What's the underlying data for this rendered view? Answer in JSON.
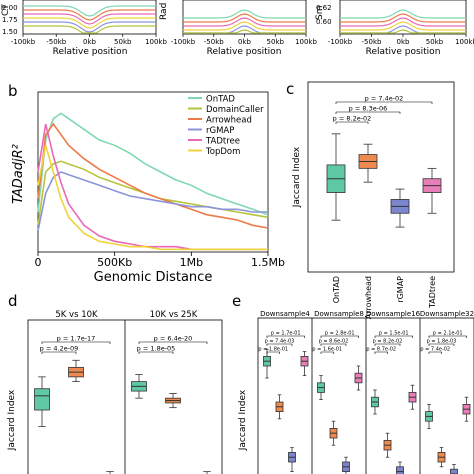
{
  "panels": {
    "a": {
      "ylabels": [
        "CT",
        "Rad",
        "Sm"
      ],
      "yticks_left": [
        "2.00",
        "1.75",
        "1.50"
      ],
      "yticks_right": [
        "0.62",
        "0.60"
      ],
      "xticks": [
        "-100kb",
        "-50kb",
        "0kb",
        "50kb",
        "100kb"
      ],
      "xlabel": "Relative position"
    },
    "b": {
      "letter": "b"
    },
    "c": {
      "letter": "c"
    },
    "d": {
      "letter": "d"
    },
    "e": {
      "letter": "e"
    }
  },
  "chart_data": [
    {
      "id": "b",
      "type": "line",
      "xlabel": "Genomic Distance",
      "ylabel": "TADadjR²",
      "xticks": [
        "0",
        "500Kb",
        "1Mb",
        "1.5Mb"
      ],
      "xlim": [
        0,
        1.5
      ],
      "ylim": [
        0,
        0.6
      ],
      "legend_loc": "top-right",
      "series": [
        {
          "name": "OnTAD",
          "color": "#7fd8b0",
          "x": [
            0,
            0.05,
            0.1,
            0.15,
            0.2,
            0.3,
            0.4,
            0.5,
            0.6,
            0.7,
            0.8,
            0.9,
            1.0,
            1.1,
            1.2,
            1.3,
            1.4,
            1.5
          ],
          "y": [
            0.15,
            0.42,
            0.5,
            0.52,
            0.5,
            0.46,
            0.42,
            0.4,
            0.37,
            0.33,
            0.3,
            0.27,
            0.25,
            0.22,
            0.2,
            0.18,
            0.16,
            0.14
          ]
        },
        {
          "name": "DomainCaller",
          "color": "#b5c43b",
          "x": [
            0,
            0.05,
            0.1,
            0.15,
            0.2,
            0.3,
            0.4,
            0.5,
            0.6,
            0.7,
            0.8,
            0.9,
            1.0,
            1.1,
            1.2,
            1.3,
            1.4,
            1.5
          ],
          "y": [
            0.1,
            0.3,
            0.33,
            0.34,
            0.33,
            0.31,
            0.28,
            0.26,
            0.24,
            0.22,
            0.2,
            0.19,
            0.18,
            0.17,
            0.16,
            0.15,
            0.14,
            0.13
          ]
        },
        {
          "name": "Arrowhead",
          "color": "#ee7a47",
          "x": [
            0,
            0.05,
            0.1,
            0.15,
            0.2,
            0.3,
            0.4,
            0.5,
            0.6,
            0.7,
            0.8,
            0.9,
            1.0,
            1.1,
            1.2,
            1.3,
            1.4,
            1.5
          ],
          "y": [
            0.2,
            0.44,
            0.48,
            0.44,
            0.4,
            0.35,
            0.31,
            0.28,
            0.25,
            0.22,
            0.2,
            0.18,
            0.16,
            0.14,
            0.13,
            0.12,
            0.1,
            0.09
          ]
        },
        {
          "name": "rGMAP",
          "color": "#8b94d8",
          "x": [
            0,
            0.05,
            0.1,
            0.15,
            0.2,
            0.3,
            0.4,
            0.5,
            0.6,
            0.7,
            0.8,
            0.9,
            1.0,
            1.1,
            1.2,
            1.3,
            1.4,
            1.5
          ],
          "y": [
            0.08,
            0.22,
            0.28,
            0.3,
            0.29,
            0.27,
            0.25,
            0.23,
            0.21,
            0.2,
            0.19,
            0.18,
            0.17,
            0.17,
            0.16,
            0.16,
            0.15,
            0.15
          ]
        },
        {
          "name": "TADtree",
          "color": "#e86ab6",
          "x": [
            0,
            0.05,
            0.1,
            0.15,
            0.2,
            0.3,
            0.4,
            0.5,
            0.6,
            0.7,
            0.8,
            0.9,
            1.0,
            1.1,
            1.2,
            1.3,
            1.4,
            1.5
          ],
          "y": [
            0.3,
            0.48,
            0.36,
            0.26,
            0.18,
            0.1,
            0.06,
            0.04,
            0.03,
            0.02,
            0.02,
            0.02,
            0.01,
            0.01,
            0.01,
            0.01,
            0.01,
            0.01
          ]
        },
        {
          "name": "TopDom",
          "color": "#f1d33b",
          "x": [
            0,
            0.05,
            0.1,
            0.15,
            0.2,
            0.3,
            0.4,
            0.5,
            0.6,
            0.7,
            0.8,
            0.9,
            1.0,
            1.1,
            1.2,
            1.3,
            1.4,
            1.5
          ],
          "y": [
            0.25,
            0.4,
            0.3,
            0.2,
            0.13,
            0.07,
            0.04,
            0.03,
            0.02,
            0.02,
            0.01,
            0.01,
            0.01,
            0.01,
            0.01,
            0.01,
            0.01,
            0.01
          ]
        }
      ]
    },
    {
      "id": "c",
      "type": "box",
      "ylabel": "Jaccard Index",
      "ylim": [
        0.05,
        0.6
      ],
      "categories": [
        "OnTAD",
        "Arrowhead",
        "rGMAP",
        "TADtree"
      ],
      "colors": [
        "#5fc9a6",
        "#ee8a4f",
        "#7c86cf",
        "#e87fb8"
      ],
      "boxes": [
        {
          "whislo": 0.2,
          "q1": 0.28,
          "med": 0.32,
          "q3": 0.36,
          "whishi": 0.45
        },
        {
          "whislo": 0.31,
          "q1": 0.35,
          "med": 0.37,
          "q3": 0.39,
          "whishi": 0.42
        },
        {
          "whislo": 0.18,
          "q1": 0.22,
          "med": 0.24,
          "q3": 0.26,
          "whishi": 0.29
        },
        {
          "whislo": 0.22,
          "q1": 0.28,
          "med": 0.3,
          "q3": 0.32,
          "whishi": 0.35
        }
      ],
      "comparisons": [
        {
          "from": 0,
          "to": 1,
          "label": "p = 8.2e-02"
        },
        {
          "from": 0,
          "to": 2,
          "label": "p = 8.3e-06"
        },
        {
          "from": 0,
          "to": 3,
          "label": "p = 7.4e-02"
        }
      ]
    },
    {
      "id": "d",
      "type": "box",
      "ylabel": "Jaccard Index",
      "ylim": [
        0.05,
        0.7
      ],
      "groups": [
        {
          "title": "5K vs 10K",
          "colors": [
            "#5fc9a6",
            "#ee8a4f",
            "#7c86cf"
          ],
          "boxes": [
            {
              "whislo": 0.25,
              "q1": 0.32,
              "med": 0.38,
              "q3": 0.41,
              "whishi": 0.46
            },
            {
              "whislo": 0.44,
              "q1": 0.46,
              "med": 0.48,
              "q3": 0.5,
              "whishi": 0.53
            },
            {
              "whislo": 0.0,
              "q1": 0.02,
              "med": 0.03,
              "q3": 0.04,
              "whishi": 0.06
            }
          ],
          "comparisons": [
            {
              "from": 0,
              "to": 1,
              "label": "p = 4.2e-09"
            },
            {
              "from": 0,
              "to": 2,
              "label": "p = 1.7e-17"
            }
          ]
        },
        {
          "title": "10K vs 25K",
          "colors": [
            "#5fc9a6",
            "#ee8a4f",
            "#7c86cf"
          ],
          "boxes": [
            {
              "whislo": 0.37,
              "q1": 0.4,
              "med": 0.42,
              "q3": 0.44,
              "whishi": 0.47
            },
            {
              "whislo": 0.33,
              "q1": 0.35,
              "med": 0.36,
              "q3": 0.37,
              "whishi": 0.39
            },
            {
              "whislo": 0.0,
              "q1": 0.02,
              "med": 0.03,
              "q3": 0.04,
              "whishi": 0.06
            }
          ],
          "comparisons": [
            {
              "from": 0,
              "to": 1,
              "label": "p = 1.8e-05"
            },
            {
              "from": 0,
              "to": 2,
              "label": "p = 6.4e-20"
            }
          ]
        }
      ]
    },
    {
      "id": "e",
      "type": "box",
      "ylabel": "Jaccard Index",
      "ylim": [
        0.05,
        0.7
      ],
      "groups": [
        {
          "title": "Downsample4",
          "colors": [
            "#5fc9a6",
            "#ee8a4f",
            "#7c86cf",
            "#e87fb8"
          ],
          "boxes": [
            {
              "whislo": 0.45,
              "q1": 0.5,
              "med": 0.52,
              "q3": 0.54,
              "whishi": 0.57
            },
            {
              "whislo": 0.28,
              "q1": 0.31,
              "med": 0.33,
              "q3": 0.35,
              "whishi": 0.38
            },
            {
              "whislo": 0.06,
              "q1": 0.1,
              "med": 0.12,
              "q3": 0.14,
              "whishi": 0.16
            },
            {
              "whislo": 0.46,
              "q1": 0.5,
              "med": 0.52,
              "q3": 0.54,
              "whishi": 0.56
            }
          ],
          "comparisons": [
            {
              "from": 0,
              "to": 1,
              "label": "p = 1.8e-01"
            },
            {
              "from": 0,
              "to": 2,
              "label": "p = 7.4e-03"
            },
            {
              "from": 0,
              "to": 3,
              "label": "p = 1.7e-01"
            }
          ]
        },
        {
          "title": "Downsample8",
          "colors": [
            "#5fc9a6",
            "#ee8a4f",
            "#7c86cf",
            "#e87fb8"
          ],
          "boxes": [
            {
              "whislo": 0.36,
              "q1": 0.39,
              "med": 0.41,
              "q3": 0.43,
              "whishi": 0.46
            },
            {
              "whislo": 0.17,
              "q1": 0.2,
              "med": 0.22,
              "q3": 0.24,
              "whishi": 0.27
            },
            {
              "whislo": 0.04,
              "q1": 0.06,
              "med": 0.08,
              "q3": 0.1,
              "whishi": 0.12
            },
            {
              "whislo": 0.4,
              "q1": 0.43,
              "med": 0.45,
              "q3": 0.47,
              "whishi": 0.5
            }
          ],
          "comparisons": [
            {
              "from": 0,
              "to": 1,
              "label": "p = 1.6e-01"
            },
            {
              "from": 0,
              "to": 2,
              "label": "p = 8.6e-02"
            },
            {
              "from": 0,
              "to": 3,
              "label": "p = 2.8e-01"
            }
          ]
        },
        {
          "title": "Downsample16",
          "colors": [
            "#5fc9a6",
            "#ee8a4f",
            "#7c86cf",
            "#e87fb8"
          ],
          "boxes": [
            {
              "whislo": 0.3,
              "q1": 0.33,
              "med": 0.35,
              "q3": 0.37,
              "whishi": 0.4
            },
            {
              "whislo": 0.12,
              "q1": 0.15,
              "med": 0.17,
              "q3": 0.19,
              "whishi": 0.22
            },
            {
              "whislo": 0.02,
              "q1": 0.04,
              "med": 0.06,
              "q3": 0.08,
              "whishi": 0.1
            },
            {
              "whislo": 0.32,
              "q1": 0.35,
              "med": 0.37,
              "q3": 0.39,
              "whishi": 0.42
            }
          ],
          "comparisons": [
            {
              "from": 0,
              "to": 1,
              "label": "p = 8.7e-02"
            },
            {
              "from": 0,
              "to": 2,
              "label": "p = 8.2e-02"
            },
            {
              "from": 0,
              "to": 3,
              "label": "p = 1.5e-01"
            }
          ]
        },
        {
          "title": "Downsample32",
          "colors": [
            "#5fc9a6",
            "#ee8a4f",
            "#7c86cf",
            "#e87fb8"
          ],
          "boxes": [
            {
              "whislo": 0.24,
              "q1": 0.27,
              "med": 0.29,
              "q3": 0.31,
              "whishi": 0.34
            },
            {
              "whislo": 0.08,
              "q1": 0.1,
              "med": 0.12,
              "q3": 0.14,
              "whishi": 0.16
            },
            {
              "whislo": 0.01,
              "q1": 0.03,
              "med": 0.05,
              "q3": 0.07,
              "whishi": 0.09
            },
            {
              "whislo": 0.27,
              "q1": 0.3,
              "med": 0.32,
              "q3": 0.34,
              "whishi": 0.37
            }
          ],
          "comparisons": [
            {
              "from": 0,
              "to": 1,
              "label": "p = 7.4e-02"
            },
            {
              "from": 0,
              "to": 2,
              "label": "p = 1.8e-03"
            },
            {
              "from": 0,
              "to": 3,
              "label": "p = 2.1e-01"
            }
          ]
        }
      ]
    }
  ]
}
